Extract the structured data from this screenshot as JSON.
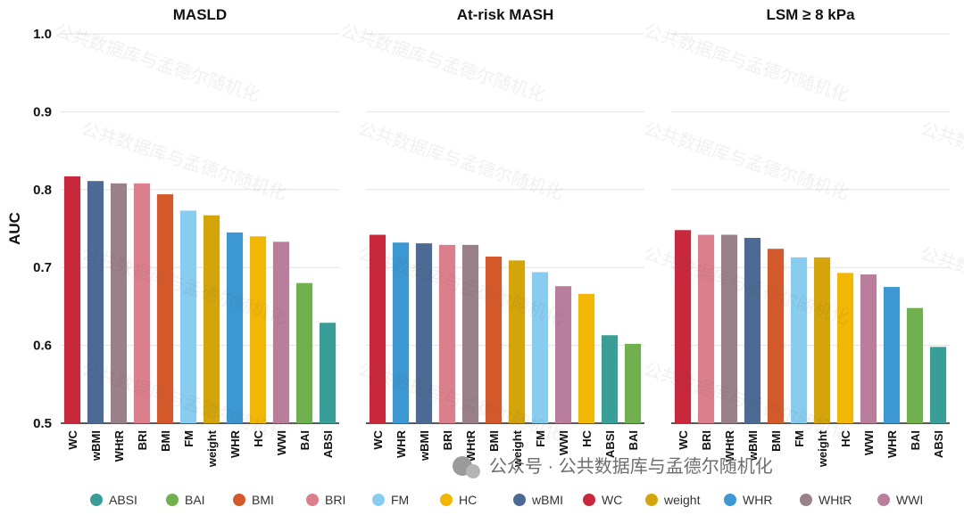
{
  "chart_data": {
    "type": "bar",
    "ylabel": "AUC",
    "ylim": [
      0.5,
      1.0
    ],
    "yticks": [
      "0.5",
      "0.6",
      "0.7",
      "0.8",
      "0.9",
      "1.0"
    ],
    "grid": true,
    "legend_placement": "bottom",
    "panels": [
      {
        "title": "MASLD",
        "categories": [
          "WC",
          "wBMI",
          "WHtR",
          "BRI",
          "BMI",
          "FM",
          "weight",
          "WHR",
          "HC",
          "WWI",
          "BAI",
          "ABSI"
        ],
        "values": [
          0.817,
          0.811,
          0.808,
          0.808,
          0.794,
          0.773,
          0.767,
          0.745,
          0.74,
          0.733,
          0.68,
          0.629
        ]
      },
      {
        "title": "At-risk MASH",
        "categories": [
          "WC",
          "WHR",
          "wBMI",
          "BRI",
          "WHtR",
          "BMI",
          "weight",
          "FM",
          "WWI",
          "HC",
          "ABSI",
          "BAI"
        ],
        "values": [
          0.742,
          0.732,
          0.731,
          0.729,
          0.729,
          0.714,
          0.709,
          0.694,
          0.676,
          0.666,
          0.613,
          0.602
        ]
      },
      {
        "title": "LSM ≥ 8 kPa",
        "categories": [
          "WC",
          "BRI",
          "WHtR",
          "wBMI",
          "BMI",
          "FM",
          "weight",
          "HC",
          "WWI",
          "WHR",
          "BAI",
          "ABSI"
        ],
        "values": [
          0.748,
          0.742,
          0.742,
          0.738,
          0.724,
          0.713,
          0.713,
          0.693,
          0.691,
          0.675,
          0.648,
          0.598
        ]
      }
    ],
    "legend": [
      {
        "name": "ABSI",
        "color": "#3a9e98"
      },
      {
        "name": "BAI",
        "color": "#70b04f"
      },
      {
        "name": "BMI",
        "color": "#d55a2b"
      },
      {
        "name": "BRI",
        "color": "#dc7f8c"
      },
      {
        "name": "FM",
        "color": "#88cdef"
      },
      {
        "name": "HC",
        "color": "#f2b705"
      },
      {
        "name": "wBMI",
        "color": "#4c6a94"
      },
      {
        "name": "WC",
        "color": "#c8283c"
      },
      {
        "name": "weight",
        "color": "#d4a40b"
      },
      {
        "name": "WHR",
        "color": "#3c97d2"
      },
      {
        "name": "WHtR",
        "color": "#9a8088"
      },
      {
        "name": "WWI",
        "color": "#b97e9c"
      }
    ]
  },
  "watermark": {
    "text": "公共数据库与孟德尔随机化",
    "banner": "公众号 · 公共数据库与孟德尔随机化"
  }
}
